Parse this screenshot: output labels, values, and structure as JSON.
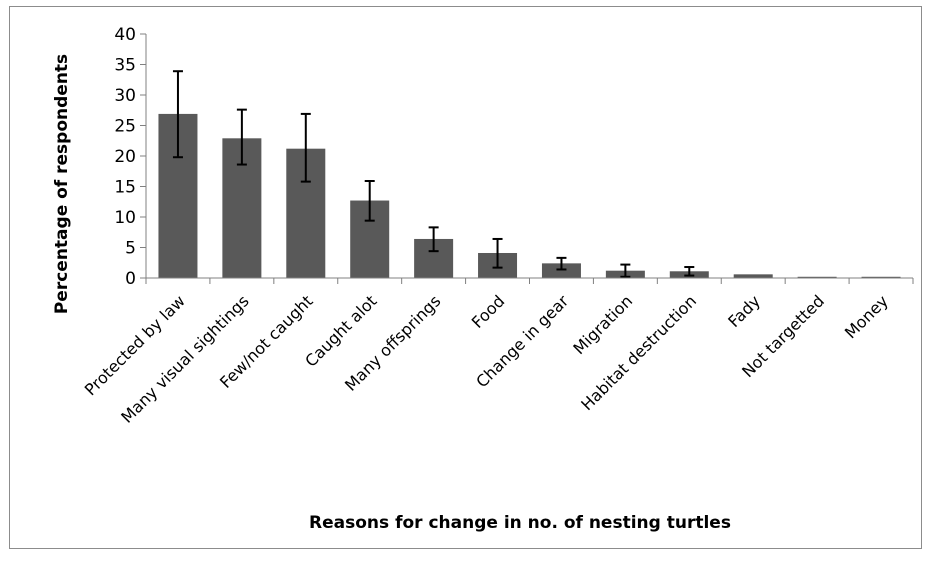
{
  "chart_data": {
    "type": "bar",
    "title": "",
    "xlabel": "Reasons for change in no. of nesting turtles",
    "ylabel": "Percentage of respondents",
    "ylim": [
      0,
      40
    ],
    "yticks": [
      0,
      5,
      10,
      15,
      20,
      25,
      30,
      35,
      40
    ],
    "grid": false,
    "legend": "none",
    "categories": [
      "Protected by law",
      "Many visual sightings",
      "Few/not caught",
      "Caught alot",
      "Many offsprings",
      "Food",
      "Change in gear",
      "Migration",
      "Habitat destruction",
      "Fady",
      "Not targetted",
      "Money"
    ],
    "values": [
      26.9,
      22.9,
      21.2,
      12.7,
      6.4,
      4.1,
      2.4,
      1.2,
      1.1,
      0.6,
      0.2,
      0.2
    ],
    "error_low": [
      19.8,
      18.6,
      15.8,
      9.4,
      4.4,
      1.7,
      1.4,
      0.2,
      0.4,
      null,
      null,
      null
    ],
    "error_high": [
      33.9,
      27.6,
      26.9,
      15.9,
      8.3,
      6.4,
      3.3,
      2.2,
      1.8,
      null,
      null,
      null
    ],
    "colors": {
      "bar": "#595959",
      "axis": "#808080",
      "error_bar": "#000000"
    }
  }
}
